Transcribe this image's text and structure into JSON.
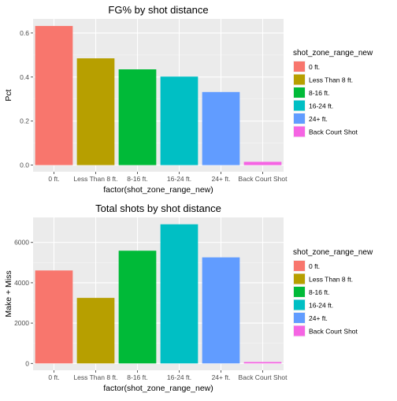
{
  "chart_data": [
    {
      "type": "bar",
      "title": "FG% by shot distance",
      "xlabel": "factor(shot_zone_range_new)",
      "ylabel": "Pct",
      "categories": [
        "0 ft.",
        "Less Than 8 ft.",
        "8-16 ft.",
        "16-24 ft.",
        "24+ ft.",
        "Back Court Shot"
      ],
      "values": [
        0.632,
        0.485,
        0.435,
        0.402,
        0.332,
        0.015
      ],
      "ylim": [
        -0.03,
        0.664
      ],
      "yticks": [
        0.0,
        0.2,
        0.4,
        0.6
      ],
      "ytick_labels": [
        "0.0",
        "0.2",
        "0.4",
        "0.6"
      ],
      "colors": [
        "#F8766D",
        "#B79F00",
        "#00BA38",
        "#00BFC4",
        "#619CFF",
        "#F564E3"
      ],
      "legend": {
        "title": "shot_zone_range_new",
        "placement": "right",
        "items": [
          "0 ft.",
          "Less Than 8 ft.",
          "8-16 ft.",
          "16-24 ft.",
          "24+ ft.",
          "Back Court Shot"
        ]
      },
      "grid": true
    },
    {
      "type": "bar",
      "title": "Total shots by shot distance",
      "xlabel": "factor(shot_zone_range_new)",
      "ylabel": "Make + Miss",
      "categories": [
        "0 ft.",
        "Less Than 8 ft.",
        "8-16 ft.",
        "16-24 ft.",
        "24+ ft.",
        "Back Court Shot"
      ],
      "values": [
        4610,
        3250,
        5590,
        6900,
        5260,
        70
      ],
      "ylim": [
        -340,
        7240
      ],
      "yticks": [
        0,
        2000,
        4000,
        6000
      ],
      "ytick_labels": [
        "0",
        "2000",
        "4000",
        "6000"
      ],
      "colors": [
        "#F8766D",
        "#B79F00",
        "#00BA38",
        "#00BFC4",
        "#619CFF",
        "#F564E3"
      ],
      "legend": {
        "title": "shot_zone_range_new",
        "placement": "right",
        "items": [
          "0 ft.",
          "Less Than 8 ft.",
          "8-16 ft.",
          "16-24 ft.",
          "24+ ft.",
          "Back Court Shot"
        ]
      },
      "grid": true
    }
  ]
}
